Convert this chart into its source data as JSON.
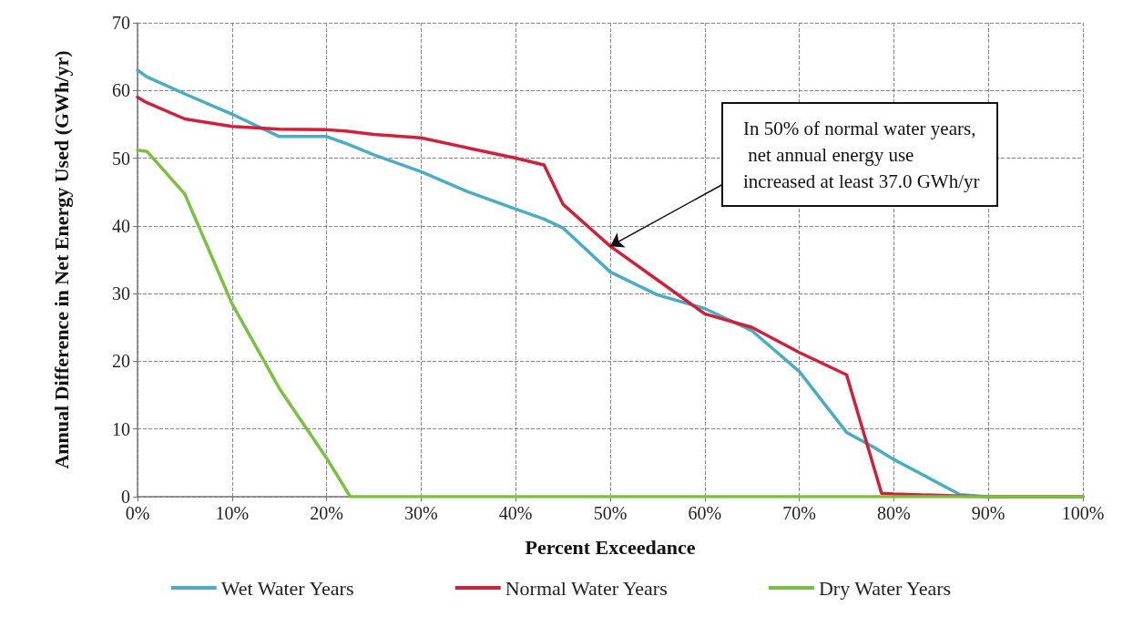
{
  "chart_data": {
    "type": "line",
    "xlabel": "Percent Exceedance",
    "ylabel": "Annual Difference in Net Energy Used (GWh/yr)",
    "xlim": [
      0,
      100
    ],
    "ylim": [
      0,
      70
    ],
    "xticks": [
      {
        "value": 0,
        "label": "0%"
      },
      {
        "value": 10,
        "label": "10%"
      },
      {
        "value": 20,
        "label": "20%"
      },
      {
        "value": 30,
        "label": "30%"
      },
      {
        "value": 40,
        "label": "40%"
      },
      {
        "value": 50,
        "label": "50%"
      },
      {
        "value": 60,
        "label": "60%"
      },
      {
        "value": 70,
        "label": "70%"
      },
      {
        "value": 80,
        "label": "80%"
      },
      {
        "value": 90,
        "label": "90%"
      },
      {
        "value": 100,
        "label": "100%"
      }
    ],
    "yticks": [
      0,
      10,
      20,
      30,
      40,
      50,
      60,
      70
    ],
    "grid": true,
    "legend": "bottom",
    "marker": "none",
    "line_style": "solid",
    "series": [
      {
        "name": "Wet Water Years",
        "color": "#4bacc6",
        "x": [
          0,
          1,
          5,
          10,
          15,
          20,
          22,
          25,
          30,
          35,
          40,
          43,
          45,
          50,
          55,
          60,
          65,
          70,
          75,
          78,
          80,
          87,
          90,
          100
        ],
        "values": [
          63,
          62,
          59.5,
          56.5,
          53.2,
          53.2,
          52.2,
          50.5,
          48,
          45,
          42.5,
          41,
          39.7,
          33.2,
          29.8,
          27.8,
          24.5,
          18.5,
          9.5,
          7.2,
          5.5,
          0.3,
          0,
          0
        ]
      },
      {
        "name": "Normal Water Years",
        "color": "#d0213a",
        "x": [
          0,
          1,
          5,
          10,
          15,
          20,
          22,
          25,
          30,
          35,
          40,
          43,
          45,
          50,
          55,
          60,
          65,
          70,
          75,
          78.7,
          80,
          87,
          90,
          100
        ],
        "values": [
          59,
          58.2,
          55.8,
          54.7,
          54.3,
          54.2,
          54,
          53.5,
          53,
          51.5,
          50,
          49,
          43.2,
          37,
          32,
          27,
          25,
          21.3,
          18,
          0.5,
          0.4,
          0.1,
          0,
          0
        ]
      },
      {
        "name": "Dry Water Years",
        "color": "#7ac142",
        "x": [
          0,
          1,
          5,
          10,
          15,
          20,
          22.5,
          100
        ],
        "values": [
          51.2,
          51,
          44.7,
          28.5,
          16,
          5.7,
          0,
          0
        ]
      }
    ],
    "annotations": [
      {
        "text": "In 50% of normal water years, net annual energy use increased at least 37.0 GWh/yr",
        "x": 50,
        "y": 37
      }
    ]
  }
}
